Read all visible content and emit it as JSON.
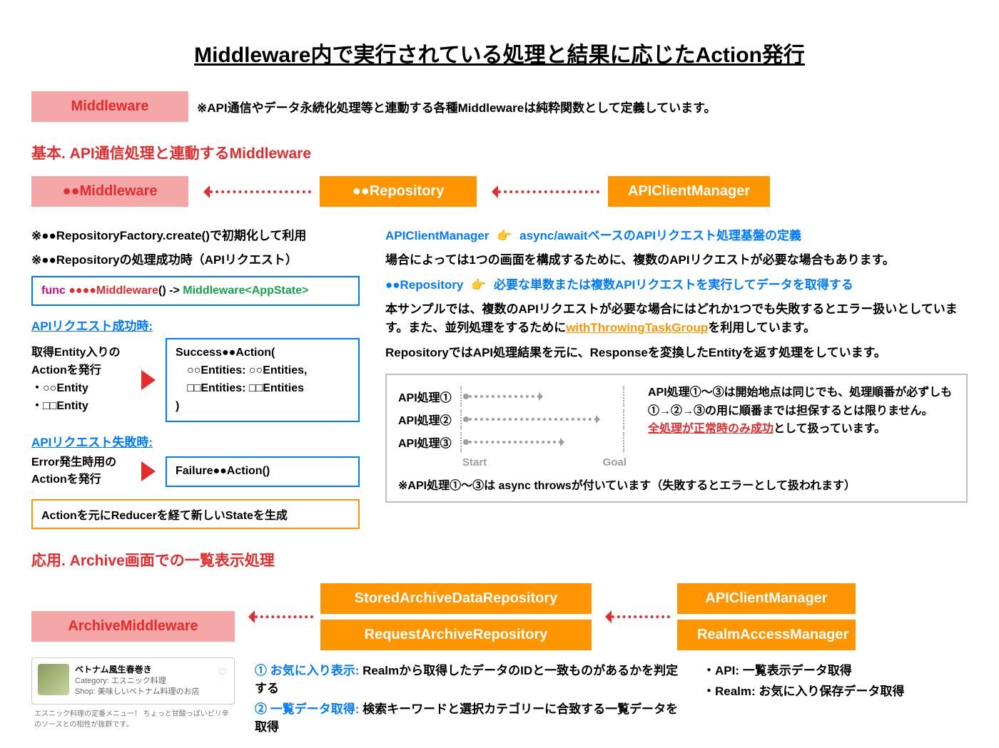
{
  "title": "Middleware内で実行されている処理と結果に応じたAction発行",
  "intro": {
    "label": "Middleware",
    "note": "※API通信やデータ永続化処理等と連動する各種Middlewareは純粋関数として定義しています。"
  },
  "section1": {
    "heading": "基本. API通信処理と連動するMiddleware",
    "boxes": {
      "mw": "●●Middleware",
      "repo": "●●Repository",
      "api": "APIClientManager"
    },
    "left": {
      "l1": "※●●RepositoryFactory.create()で初期化して利用",
      "l2": "※●●Repositoryの処理成功時（APIリクエスト）",
      "code_kw": "func",
      "code_mw": "●●●●Middleware",
      "code_rest": "() ->",
      "code_tp1": "Middleware",
      "code_tp2": "<AppState>",
      "succ_label": "APIリクエスト成功時:",
      "succ_text1": "取得Entity入りの",
      "succ_text2": "Actionを発行",
      "succ_b1": "・○○Entity",
      "succ_b2": "・□□Entity",
      "succ_code1": "Success●●Action(",
      "succ_code2": "　○○Entities: ○○Entities,",
      "succ_code3": "　□□Entities: □□Entities",
      "succ_code4": ")",
      "fail_label": "APIリクエスト失敗時:",
      "fail_text1": "Error発生時用の",
      "fail_text2": "Actionを発行",
      "fail_code": "Failure●●Action()",
      "orange": "Actionを元にReducerを経て新しいStateを生成"
    },
    "right": {
      "r1a": "APIClientManager",
      "r1b": "async/awaitベースのAPIリクエスト処理基盤の定義",
      "r2": "場合によっては1つの画面を構成するために、複数のAPIリクエストが必要な場合もあります。",
      "r3a": "●●Repository",
      "r3b": "必要な単数または複数APIリクエストを実行してデータを取得する",
      "r4a": "本サンプルでは、複数のAPIリクエストが必要な場合にはどれか1つでも失敗するとエラー扱いとしています。また、並列処理をするために",
      "r4b": "withThrowingTaskGroup",
      "r4c": "を利用しています。",
      "r5": "RepositoryではAPI処理結果を元に、Responseを変換したEntityを返す処理をしています。",
      "api": {
        "p1": "API処理①",
        "p2": "API処理②",
        "p3": "API処理③",
        "start": "Start",
        "goal": "Goal",
        "bars": {
          "b1": 100,
          "b2": 180,
          "b3": 130
        },
        "right1": "API処理①〜③は開始地点は同じでも、処理順番が必ずしも①→②→③の用に順番までは担保するとは限りません。",
        "right2": "全処理が正常時のみ成功",
        "right3": "として扱っています。",
        "foot": "※API処理①〜③は async throwsが付いています（失敗するとエラーとして扱われます）"
      }
    }
  },
  "section2": {
    "heading": "応用. Archive画面での一覧表示処理",
    "boxes": {
      "mw": "ArchiveMiddleware",
      "r1": "StoredArchiveDataRepository",
      "r2": "RequestArchiveRepository",
      "a1": "APIClientManager",
      "a2": "RealmAccessManager"
    },
    "card": {
      "title": "ベトナム風生春巻き",
      "cat": "Category: エスニック料理",
      "shop": "Shop: 美味しいベトナム料理のお店",
      "desc": "エスニック料理の定番メニュー！ ちょっと甘酸っぱいピリ辛のソースとの相性が抜群です。"
    },
    "n1h": "① お気に入り表示:",
    "n1t": "Realmから取得したデータのIDと一致ものがあるかを判定する",
    "n2h": "② 一覧データ取得:",
    "n2t": "検索キーワードと選択カテゴリーに合致する一覧データを取得",
    "b1": "・API: 一覧表示データ取得",
    "b2": "・Realm: お気に入り保存データ取得"
  },
  "colors": {
    "red": "#e52b2b",
    "pink": "#f5a6a6",
    "orange": "#ff9500",
    "blue": "#007aff",
    "gray": "#9e9e9e"
  }
}
